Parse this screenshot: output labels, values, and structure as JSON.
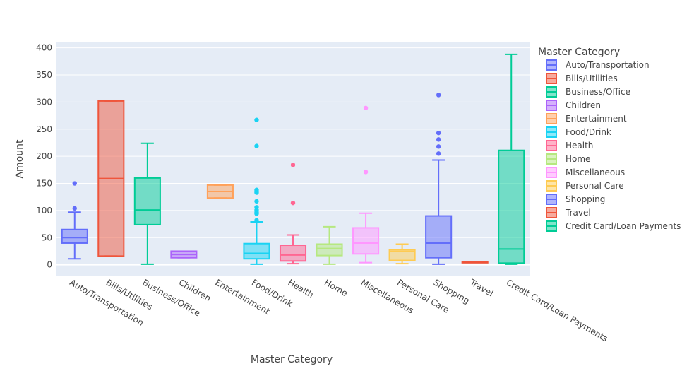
{
  "chart_data": {
    "type": "box",
    "xlabel": "Master Category",
    "ylabel": "Amount",
    "ylim": [
      -20,
      410
    ],
    "yticks": [
      0,
      50,
      100,
      150,
      200,
      250,
      300,
      350,
      400
    ],
    "grid": true,
    "legend": {
      "title": "Master Category",
      "placement": "right"
    },
    "series": [
      {
        "name": "Auto/Transportation",
        "color": "#636efa",
        "min": 11,
        "q1": 40,
        "median": 50,
        "q3": 65,
        "max": 97,
        "outliers": [
          104,
          150
        ]
      },
      {
        "name": "Bills/Utilities",
        "color": "#ef553b",
        "min": 16,
        "q1": 16,
        "median": 159,
        "q3": 302,
        "max": 302,
        "outliers": []
      },
      {
        "name": "Business/Office",
        "color": "#00cc96",
        "min": 1,
        "q1": 74,
        "median": 101,
        "q3": 160,
        "max": 224,
        "outliers": []
      },
      {
        "name": "Children",
        "color": "#ab63fa",
        "min": 13,
        "q1": 13,
        "median": 19,
        "q3": 25,
        "max": 25,
        "outliers": []
      },
      {
        "name": "Entertainment",
        "color": "#ffa15a",
        "min": 123,
        "q1": 123,
        "median": 135,
        "q3": 147,
        "max": 147,
        "outliers": []
      },
      {
        "name": "Food/Drink",
        "color": "#19d3f3",
        "min": 1,
        "q1": 11,
        "median": 21,
        "q3": 39,
        "max": 79,
        "outliers": [
          82,
          94,
          97,
          101,
          106,
          117,
          133,
          136,
          138,
          219,
          267
        ]
      },
      {
        "name": "Health",
        "color": "#ff6692",
        "min": 2,
        "q1": 7,
        "median": 18,
        "q3": 36,
        "max": 55,
        "outliers": [
          114,
          184
        ]
      },
      {
        "name": "Home",
        "color": "#b6e880",
        "min": 1,
        "q1": 17,
        "median": 30,
        "q3": 38,
        "max": 70,
        "outliers": []
      },
      {
        "name": "Miscellaneous",
        "color": "#ff97ff",
        "min": 4,
        "q1": 20,
        "median": 40,
        "q3": 68,
        "max": 95,
        "outliers": [
          171,
          289
        ]
      },
      {
        "name": "Personal Care",
        "color": "#fecb52",
        "min": 2,
        "q1": 8,
        "median": 25,
        "q3": 28,
        "max": 38,
        "outliers": []
      },
      {
        "name": "Shopping",
        "color": "#636efa",
        "min": 1,
        "q1": 13,
        "median": 40,
        "q3": 90,
        "max": 193,
        "outliers": [
          205,
          218,
          231,
          243,
          313
        ]
      },
      {
        "name": "Travel",
        "color": "#ef553b",
        "min": 5,
        "q1": 5,
        "median": 5,
        "q3": 5,
        "max": 5,
        "outliers": []
      },
      {
        "name": "Credit Card/Loan Payments",
        "color": "#00cc96",
        "min": 1,
        "q1": 3,
        "median": 29,
        "q3": 211,
        "max": 388,
        "outliers": []
      }
    ]
  }
}
